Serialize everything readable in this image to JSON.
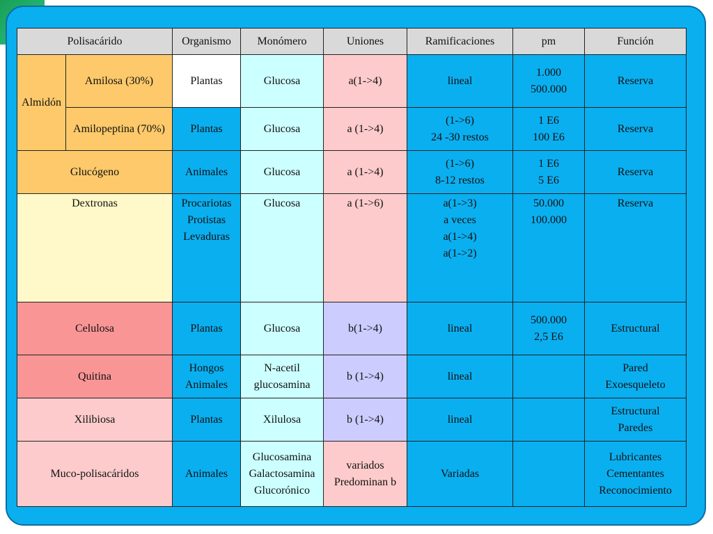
{
  "headers": [
    "Polisacárido",
    "Organismo",
    "Monómero",
    "Uniones",
    "Ramificaciones",
    "pm",
    "Función"
  ],
  "rows": [
    {
      "group": "Almidón",
      "name": "Amilosa (30%)",
      "organismo": "Plantas",
      "monomero": "Glucosa",
      "uniones": "a(1->4)",
      "ramificaciones": "lineal",
      "pm": "1.000\n500.000",
      "funcion": "Reserva"
    },
    {
      "name": "Amilopeptina (70%)",
      "organismo": "Plantas",
      "monomero": "Glucosa",
      "uniones": "a (1->4)",
      "ramificaciones": "(1->6)\n24 -30 restos",
      "pm": "1 E6\n100 E6",
      "funcion": "Reserva"
    },
    {
      "name": "Glucógeno",
      "organismo": "Animales",
      "monomero": "Glucosa",
      "uniones": "a (1->4)",
      "ramificaciones": "(1->6)\n8-12 restos",
      "pm": "1 E6\n5 E6",
      "funcion": "Reserva"
    },
    {
      "name": "Dextronas",
      "organismo": "Procariotas\nProtistas\nLevaduras",
      "monomero": "Glucosa",
      "uniones": "a (1->6)",
      "ramificaciones": "a(1->3)\na veces\na(1->4)\na(1->2)",
      "pm": "50.000\n100.000",
      "funcion": "Reserva"
    },
    {
      "name": "Celulosa",
      "organismo": "Plantas",
      "monomero": "Glucosa",
      "uniones": "b(1->4)",
      "ramificaciones": "lineal",
      "pm": "500.000\n2,5 E6",
      "funcion": "Estructural"
    },
    {
      "name": "Quitina",
      "organismo": "Hongos\nAnimales",
      "monomero": "N-acetil\nglucosamina",
      "uniones": "b (1->4)",
      "ramificaciones": "lineal",
      "pm": "",
      "funcion": "Pared\nExoesqueleto"
    },
    {
      "name": "Xilibiosa",
      "organismo": "Plantas",
      "monomero": "Xilulosa",
      "uniones": "b (1->4)",
      "ramificaciones": "lineal",
      "pm": "",
      "funcion": "Estructural\nParedes"
    },
    {
      "name": "Muco-polisacáridos",
      "organismo": "Animales",
      "monomero": "Glucosamina\nGalactosamina\nGlucorónico",
      "uniones": "variados\nPredominan b",
      "ramificaciones": "Variadas",
      "pm": "",
      "funcion": "Lubricantes\nCementantes\nReconocimiento"
    }
  ],
  "colors": {
    "frame": "#0aaff0",
    "header": "#d9d9d9",
    "orange": "#fdc96a",
    "light_yellow": "#fff9c9",
    "salmon": "#fa9595",
    "pink": "#fdcbcb",
    "cyan": "#ccffff",
    "lavender": "#ccccff"
  }
}
